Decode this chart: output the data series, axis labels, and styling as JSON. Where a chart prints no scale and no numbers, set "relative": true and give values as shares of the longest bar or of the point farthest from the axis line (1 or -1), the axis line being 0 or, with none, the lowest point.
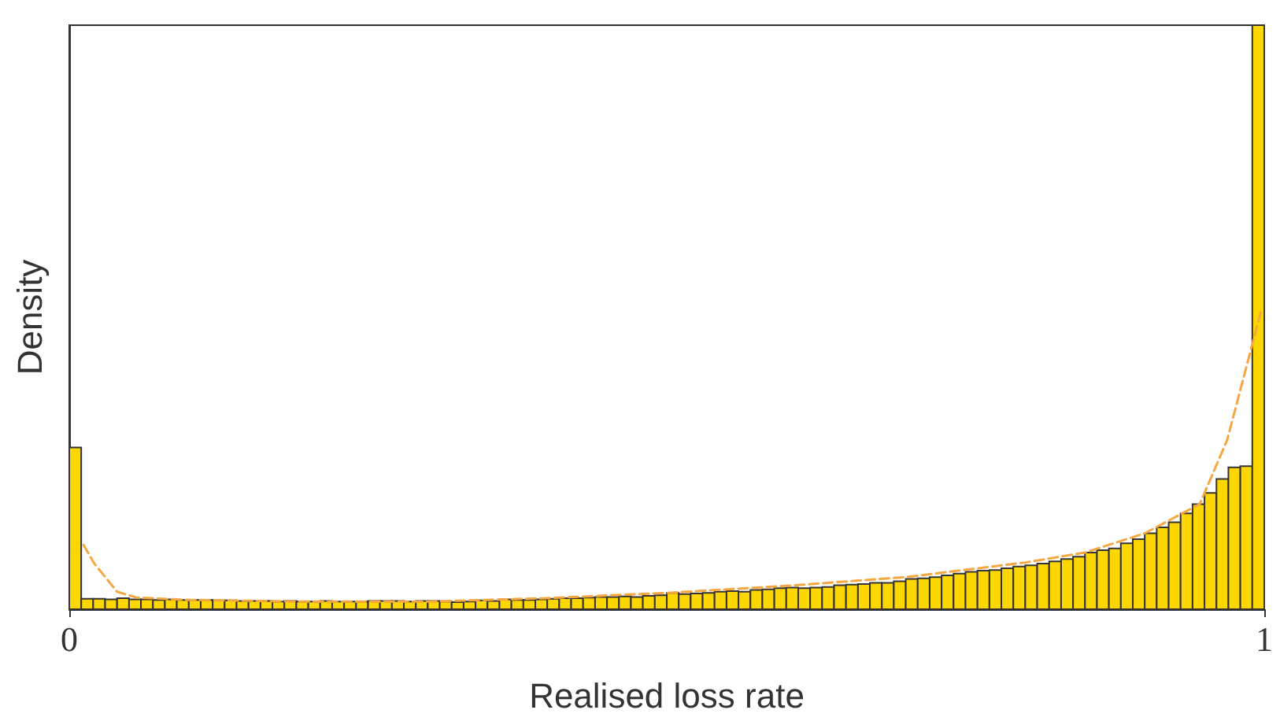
{
  "chart_data": {
    "type": "histogram",
    "xlabel": "Realised loss rate",
    "ylabel": "Density",
    "relative": true,
    "xlim": [
      0,
      1
    ],
    "xticks": [
      0,
      1
    ],
    "grid": false,
    "bins": [
      0,
      0.01,
      0.02,
      0.03,
      0.04,
      0.05,
      0.06,
      0.07,
      0.08,
      0.09,
      0.1,
      0.11,
      0.12,
      0.13,
      0.14,
      0.15,
      0.16,
      0.17,
      0.18,
      0.19,
      0.2,
      0.21,
      0.22,
      0.23,
      0.24,
      0.25,
      0.26,
      0.27,
      0.28,
      0.29,
      0.3,
      0.31,
      0.32,
      0.33,
      0.34,
      0.35,
      0.36,
      0.37,
      0.38,
      0.39,
      0.4,
      0.41,
      0.42,
      0.43,
      0.44,
      0.45,
      0.46,
      0.47,
      0.48,
      0.49,
      0.5,
      0.51,
      0.52,
      0.53,
      0.54,
      0.55,
      0.56,
      0.57,
      0.58,
      0.59,
      0.6,
      0.61,
      0.62,
      0.63,
      0.64,
      0.65,
      0.66,
      0.67,
      0.68,
      0.69,
      0.7,
      0.71,
      0.72,
      0.73,
      0.74,
      0.75,
      0.76,
      0.77,
      0.78,
      0.79,
      0.8,
      0.81,
      0.82,
      0.83,
      0.84,
      0.85,
      0.86,
      0.87,
      0.88,
      0.89,
      0.9,
      0.91,
      0.92,
      0.93,
      0.94,
      0.95,
      0.96,
      0.97,
      0.98,
      0.99,
      1
    ],
    "series": [
      {
        "color": "#ffd700",
        "values": [
          0.277,
          0.018,
          0.018,
          0.017,
          0.019,
          0.017,
          0.017,
          0.016,
          0.017,
          0.016,
          0.016,
          0.016,
          0.015,
          0.015,
          0.014,
          0.014,
          0.014,
          0.013,
          0.014,
          0.013,
          0.013,
          0.014,
          0.013,
          0.013,
          0.013,
          0.014,
          0.014,
          0.014,
          0.013,
          0.014,
          0.014,
          0.013,
          0.012,
          0.013,
          0.015,
          0.014,
          0.017,
          0.016,
          0.016,
          0.017,
          0.018,
          0.019,
          0.019,
          0.02,
          0.021,
          0.021,
          0.022,
          0.021,
          0.023,
          0.024,
          0.028,
          0.026,
          0.027,
          0.028,
          0.03,
          0.031,
          0.03,
          0.033,
          0.034,
          0.036,
          0.037,
          0.036,
          0.037,
          0.038,
          0.041,
          0.042,
          0.043,
          0.045,
          0.045,
          0.048,
          0.052,
          0.053,
          0.055,
          0.058,
          0.061,
          0.064,
          0.066,
          0.067,
          0.07,
          0.073,
          0.075,
          0.078,
          0.082,
          0.086,
          0.09,
          0.097,
          0.101,
          0.104,
          0.113,
          0.12,
          0.13,
          0.14,
          0.149,
          0.164,
          0.18,
          0.199,
          0.223,
          0.243,
          0.245,
          1
        ]
      },
      {
        "type": "line",
        "color": "#f5a742",
        "line_style": "dashed",
        "marker": "none",
        "x": [
          0.012,
          0.021,
          0.04,
          0.056,
          0.1,
          0.2,
          0.3,
          0.4,
          0.5,
          0.6,
          0.7,
          0.8,
          0.85,
          0.9,
          0.946,
          0.969,
          0.997
        ],
        "values": [
          0.11,
          0.078,
          0.03,
          0.02,
          0.016,
          0.013,
          0.013,
          0.019,
          0.028,
          0.04,
          0.055,
          0.08,
          0.097,
          0.13,
          0.18,
          0.29,
          0.508
        ]
      }
    ]
  }
}
